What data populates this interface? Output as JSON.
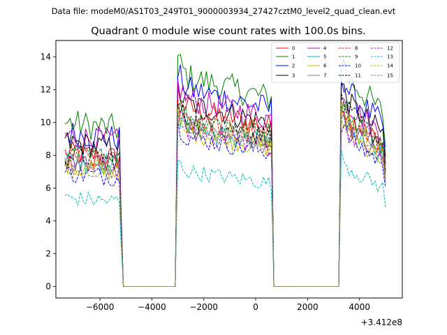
{
  "header": {
    "data_file": "Data file: modeM0/AS1T03_249T01_9000003934_27427cztM0_level2_quad_clean.evt"
  },
  "chart_data": {
    "type": "line",
    "title": "Quadrant 0 module wise count rates with 100.0s bins.",
    "xlabel": "",
    "ylabel": "",
    "x_offset_label": "+3.412e8",
    "xlim": [
      -7700,
      5650
    ],
    "ylim": [
      -0.7,
      15
    ],
    "x_ticks": [
      -6000,
      -4000,
      -2000,
      0,
      2000,
      4000
    ],
    "x_tick_labels": [
      "−6000",
      "−4000",
      "−2000",
      "0",
      "2000",
      "4000"
    ],
    "y_ticks": [
      0,
      2,
      4,
      6,
      8,
      10,
      12,
      14
    ],
    "y_tick_labels": [
      "0",
      "2",
      "4",
      "6",
      "8",
      "10",
      "12",
      "14"
    ],
    "legend_position": "top-right",
    "legend_columns": 4,
    "segments": [
      {
        "start": -7350,
        "end": -5250
      },
      {
        "start": -3000,
        "end": 600
      },
      {
        "start": 3300,
        "end": 4950
      }
    ],
    "gaps": [
      {
        "start": -5200,
        "end": -3000
      },
      {
        "start": 600,
        "end": 3200
      }
    ],
    "series": [
      {
        "name": "0",
        "color": "#ff0000",
        "style": "solid",
        "levels": [
          8.0,
          10.4,
          9.6
        ]
      },
      {
        "name": "1",
        "color": "#008000",
        "style": "solid",
        "levels": [
          9.8,
          12.2,
          11.8
        ]
      },
      {
        "name": "2",
        "color": "#0000ff",
        "style": "solid",
        "levels": [
          9.2,
          11.5,
          11.0
        ]
      },
      {
        "name": "3",
        "color": "#000000",
        "style": "solid",
        "levels": [
          8.6,
          10.6,
          10.4
        ]
      },
      {
        "name": "4",
        "color": "#bf00bf",
        "style": "solid",
        "levels": [
          9.0,
          10.9,
          10.3
        ]
      },
      {
        "name": "5",
        "color": "#00bfbf",
        "style": "solid",
        "levels": [
          7.6,
          9.2,
          9.0
        ]
      },
      {
        "name": "6",
        "color": "#bfbf00",
        "style": "solid",
        "levels": [
          7.1,
          9.0,
          8.7
        ]
      },
      {
        "name": "7",
        "color": "#808080",
        "style": "solid",
        "levels": [
          7.5,
          9.4,
          9.2
        ]
      },
      {
        "name": "8",
        "color": "#ff0000",
        "style": "dashed",
        "levels": [
          7.7,
          9.8,
          9.4
        ]
      },
      {
        "name": "9",
        "color": "#008000",
        "style": "dashed",
        "levels": [
          7.9,
          9.9,
          9.7
        ]
      },
      {
        "name": "10",
        "color": "#0000ff",
        "style": "dashed",
        "levels": [
          6.8,
          8.7,
          8.4
        ]
      },
      {
        "name": "11",
        "color": "#000000",
        "style": "dashed",
        "levels": [
          7.9,
          9.7,
          9.8
        ]
      },
      {
        "name": "12",
        "color": "#bf00bf",
        "style": "dashed",
        "levels": [
          7.3,
          9.1,
          8.8
        ]
      },
      {
        "name": "13",
        "color": "#00bfbf",
        "style": "dashed",
        "levels": [
          5.3,
          6.7,
          6.7
        ]
      },
      {
        "name": "14",
        "color": "#bfbf00",
        "style": "dashed",
        "levels": [
          7.1,
          9.3,
          9.1
        ]
      },
      {
        "name": "15",
        "color": "#808080",
        "style": "dashed",
        "levels": [
          7.3,
          9.3,
          8.9
        ]
      }
    ]
  }
}
